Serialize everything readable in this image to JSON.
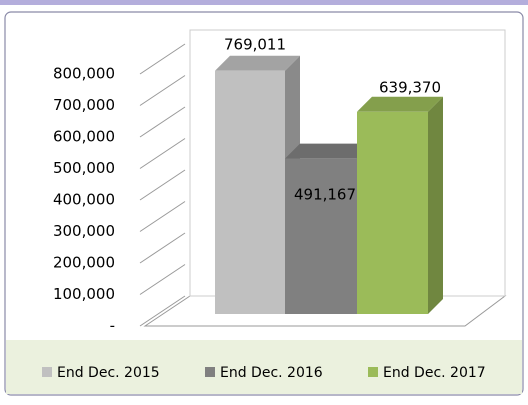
{
  "chart_data": {
    "type": "bar3d",
    "categories": [
      null
    ],
    "series": [
      {
        "name": "End Dec. 2015",
        "color": "#c0c0c0",
        "values": [
          769011
        ],
        "value_labels": [
          "769,011"
        ]
      },
      {
        "name": "End Dec. 2016",
        "color": "#808080",
        "values": [
          491167
        ],
        "value_labels": [
          "491,167"
        ]
      },
      {
        "name": "End Dec. 2017",
        "color": "#9bbb59",
        "values": [
          639370
        ],
        "value_labels": [
          "639,370"
        ]
      }
    ],
    "ylim": [
      0,
      800000
    ],
    "yticks": [
      {
        "value": 0,
        "label": "-"
      },
      {
        "value": 100000,
        "label": "100,000"
      },
      {
        "value": 200000,
        "label": "200,000"
      },
      {
        "value": 300000,
        "label": "300,000"
      },
      {
        "value": 400000,
        "label": "400,000"
      },
      {
        "value": 500000,
        "label": "500,000"
      },
      {
        "value": 600000,
        "label": "600,000"
      },
      {
        "value": 700000,
        "label": "700,000"
      },
      {
        "value": 800000,
        "label": "800,000"
      }
    ],
    "grid": true,
    "legend": "bottom"
  }
}
